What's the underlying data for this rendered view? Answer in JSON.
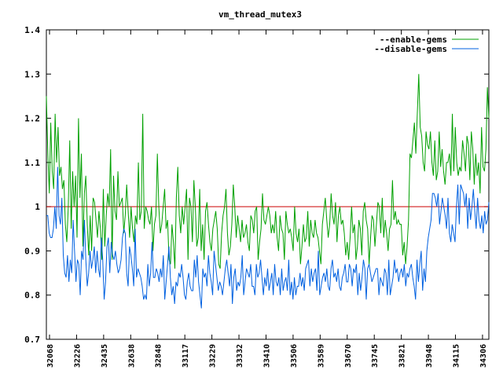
{
  "chart_data": {
    "type": "line",
    "title": "vm_thread_mutex3",
    "xlabel": "",
    "ylabel": "",
    "ylim": [
      0.7,
      1.4
    ],
    "yticks": [
      "0.7",
      "0.8",
      "0.9",
      "1",
      "1.1",
      "1.2",
      "1.3",
      "1.4"
    ],
    "xticks": [
      "32068",
      "32226",
      "32435",
      "32638",
      "32848",
      "33117",
      "33229",
      "33332",
      "33410",
      "33506",
      "33589",
      "33670",
      "33745",
      "33821",
      "33948",
      "34115",
      "34306"
    ],
    "legend_position": "top-right",
    "grid": false,
    "reference_line": {
      "y": 1,
      "color": "#cc0000"
    },
    "series": [
      {
        "name": "--enable-gems",
        "color": "#00a000",
        "values": [
          1.25,
          1.12,
          1.03,
          1.19,
          1.08,
          1.04,
          1.21,
          1.1,
          1.18,
          1.07,
          1.09,
          1.04,
          1.06,
          0.96,
          0.92,
          1.0,
          1.15,
          0.95,
          1.08,
          1.0,
          1.07,
          0.93,
          1.2,
          1.02,
          1.12,
          0.91,
          1.03,
          1.07,
          0.96,
          0.89,
          0.98,
          0.9,
          1.02,
          1.01,
          0.97,
          0.93,
          0.99,
          0.95,
          0.88,
          1.04,
          0.91,
          0.98,
          1.03,
          1.0,
          1.13,
          0.88,
          1.07,
          0.99,
          0.97,
          1.08,
          1.0,
          1.01,
          1.02,
          0.94,
          0.98,
          1.05,
          0.99,
          0.93,
          1.0,
          0.95,
          0.92,
          0.98,
          0.96,
          1.1,
          0.97,
          0.99,
          1.21,
          0.95,
          1.0,
          0.99,
          0.97,
          0.96,
          1.0,
          0.9,
          0.96,
          0.98,
          1.12,
          1.0,
          0.94,
          0.96,
          1.0,
          1.04,
          0.95,
          0.97,
          0.88,
          0.87,
          0.96,
          0.92,
          0.86,
          1.02,
          1.09,
          0.98,
          0.94,
          1.0,
          0.96,
          1.0,
          1.04,
          0.88,
          1.02,
          1.0,
          0.92,
          1.06,
          1.0,
          0.91,
          0.93,
          1.04,
          0.9,
          0.96,
          0.88,
          0.99,
          1.01,
          0.96,
          0.92,
          0.9,
          0.95,
          0.97,
          0.99,
          0.95,
          0.87,
          0.86,
          0.94,
          0.98,
          1.0,
          1.04,
          0.94,
          0.89,
          0.91,
          0.96,
          1.05,
          1.0,
          0.93,
          0.98,
          0.95,
          0.92,
          0.97,
          0.93,
          0.94,
          0.96,
          0.92,
          0.9,
          0.98,
          0.97,
          0.94,
          0.99,
          1.0,
          0.88,
          0.92,
          0.95,
          1.03,
          0.97,
          0.96,
          0.98,
          1.0,
          0.98,
          0.94,
          0.96,
          0.94,
          0.99,
          0.93,
          0.9,
          0.98,
          0.95,
          0.94,
          0.88,
          0.99,
          0.96,
          0.94,
          0.95,
          0.93,
          0.9,
          1.0,
          0.94,
          0.92,
          0.95,
          0.87,
          0.91,
          0.96,
          0.92,
          0.93,
          0.99,
          0.91,
          0.97,
          0.94,
          0.93,
          0.97,
          0.94,
          0.93,
          0.9,
          0.87,
          0.96,
          0.99,
          1.02,
          0.97,
          0.93,
          0.96,
          1.03,
          0.98,
          0.96,
          1.01,
          0.92,
          0.98,
          1.0,
          0.96,
          0.97,
          0.94,
          0.89,
          0.92,
          0.88,
          0.93,
          1.0,
          0.94,
          0.96,
          0.88,
          0.91,
          0.97,
          0.95,
          0.89,
          0.99,
          1.01,
          0.97,
          0.95,
          0.87,
          0.93,
          0.98,
          0.97,
          0.91,
          0.96,
          1.01,
          1.0,
          0.94,
          1.02,
          0.93,
          0.97,
          0.94,
          0.9,
          0.95,
          0.96,
          1.06,
          0.97,
          0.99,
          0.96,
          0.97,
          0.96,
          0.96,
          0.89,
          0.92,
          0.87,
          0.91,
          0.97,
          1.12,
          1.11,
          1.15,
          1.19,
          1.12,
          1.21,
          1.3,
          1.18,
          1.16,
          1.1,
          1.08,
          1.17,
          1.14,
          1.13,
          1.17,
          1.1,
          1.07,
          1.15,
          1.06,
          1.08,
          1.17,
          1.09,
          1.13,
          1.08,
          1.05,
          1.1,
          1.1,
          1.12,
          1.07,
          1.21,
          1.08,
          1.18,
          1.1,
          1.07,
          1.09,
          1.08,
          1.15,
          1.12,
          1.08,
          1.16,
          1.14,
          1.06,
          1.17,
          1.13,
          1.05,
          1.12,
          1.07,
          1.1,
          1.03,
          1.18,
          1.09,
          1.08,
          1.13,
          1.27,
          1.2
        ]
      },
      {
        "name": "--disable-gems",
        "color": "#0060e0",
        "values": [
          0.98,
          0.98,
          0.94,
          0.93,
          0.93,
          0.95,
          1.0,
          0.95,
          1.09,
          0.98,
          0.96,
          1.02,
          0.89,
          0.85,
          0.84,
          0.89,
          0.83,
          0.88,
          0.85,
          0.97,
          0.9,
          0.83,
          0.88,
          0.87,
          0.8,
          0.9,
          0.88,
          0.97,
          0.88,
          0.82,
          0.85,
          0.9,
          0.86,
          0.88,
          0.91,
          0.85,
          0.9,
          0.86,
          0.84,
          0.93,
          0.88,
          0.79,
          0.83,
          0.91,
          0.93,
          0.85,
          0.92,
          0.89,
          0.88,
          0.9,
          0.87,
          0.85,
          0.86,
          0.88,
          0.93,
          0.95,
          0.94,
          0.85,
          0.82,
          0.91,
          0.89,
          0.86,
          0.82,
          0.95,
          0.84,
          0.86,
          0.85,
          0.84,
          0.82,
          0.79,
          0.8,
          0.79,
          0.87,
          0.82,
          0.85,
          0.92,
          0.84,
          0.84,
          0.86,
          0.85,
          0.83,
          0.86,
          0.84,
          0.89,
          0.79,
          0.83,
          0.87,
          0.91,
          0.84,
          0.8,
          0.82,
          0.78,
          0.83,
          0.82,
          0.85,
          0.84,
          0.87,
          0.84,
          0.8,
          0.79,
          0.83,
          0.85,
          0.82,
          0.81,
          0.81,
          0.88,
          0.84,
          0.89,
          0.83,
          0.8,
          0.77,
          0.86,
          0.84,
          0.85,
          0.82,
          0.89,
          0.85,
          0.83,
          0.8,
          0.9,
          0.87,
          0.84,
          0.81,
          0.83,
          0.82,
          0.8,
          0.83,
          0.86,
          0.88,
          0.85,
          0.82,
          0.87,
          0.78,
          0.84,
          0.86,
          0.81,
          0.83,
          0.82,
          0.84,
          0.89,
          0.8,
          0.83,
          0.86,
          0.85,
          0.84,
          0.87,
          0.82,
          0.82,
          0.8,
          0.87,
          0.84,
          0.85,
          0.88,
          0.84,
          0.8,
          0.84,
          0.82,
          0.86,
          0.81,
          0.83,
          0.85,
          0.8,
          0.87,
          0.83,
          0.82,
          0.84,
          0.8,
          0.86,
          0.81,
          0.83,
          0.84,
          0.81,
          0.88,
          0.8,
          0.83,
          0.79,
          0.84,
          0.8,
          0.82,
          0.82,
          0.85,
          0.82,
          0.84,
          0.81,
          0.86,
          0.87,
          0.88,
          0.82,
          0.86,
          0.83,
          0.85,
          0.86,
          0.81,
          0.9,
          0.8,
          0.82,
          0.84,
          0.85,
          0.83,
          0.86,
          0.82,
          0.81,
          0.86,
          0.88,
          0.84,
          0.85,
          0.83,
          0.86,
          0.82,
          0.81,
          0.84,
          0.85,
          0.87,
          0.83,
          0.83,
          0.87,
          0.86,
          0.82,
          0.86,
          0.85,
          0.87,
          0.8,
          0.85,
          0.81,
          0.84,
          0.88,
          0.86,
          0.79,
          0.86,
          0.87,
          0.85,
          0.83,
          0.84,
          0.85,
          0.86,
          0.86,
          0.8,
          0.84,
          0.83,
          0.82,
          0.86,
          0.85,
          0.8,
          0.88,
          0.8,
          0.82,
          0.84,
          0.88,
          0.85,
          0.86,
          0.83,
          0.85,
          0.86,
          0.84,
          0.87,
          0.82,
          0.85,
          0.84,
          0.86,
          0.87,
          0.84,
          0.82,
          0.79,
          0.88,
          0.83,
          0.87,
          0.9,
          0.81,
          0.86,
          0.83,
          0.9,
          0.93,
          0.95,
          0.97,
          1.03,
          1.03,
          1.02,
          1.0,
          1.03,
          0.96,
          0.99,
          1.02,
          1.0,
          0.98,
          0.95,
          1.02,
          0.94,
          0.92,
          0.96,
          0.94,
          0.92,
          1.0,
          1.05,
          0.96,
          1.05,
          1.04,
          1.03,
          1.0,
          1.03,
          0.95,
          1.02,
          0.97,
          1.0,
          1.04,
          0.99,
          0.95,
          1.02,
          0.97,
          0.95,
          0.98,
          0.94,
          0.99,
          0.96,
          0.97,
          1.01
        ]
      }
    ]
  }
}
